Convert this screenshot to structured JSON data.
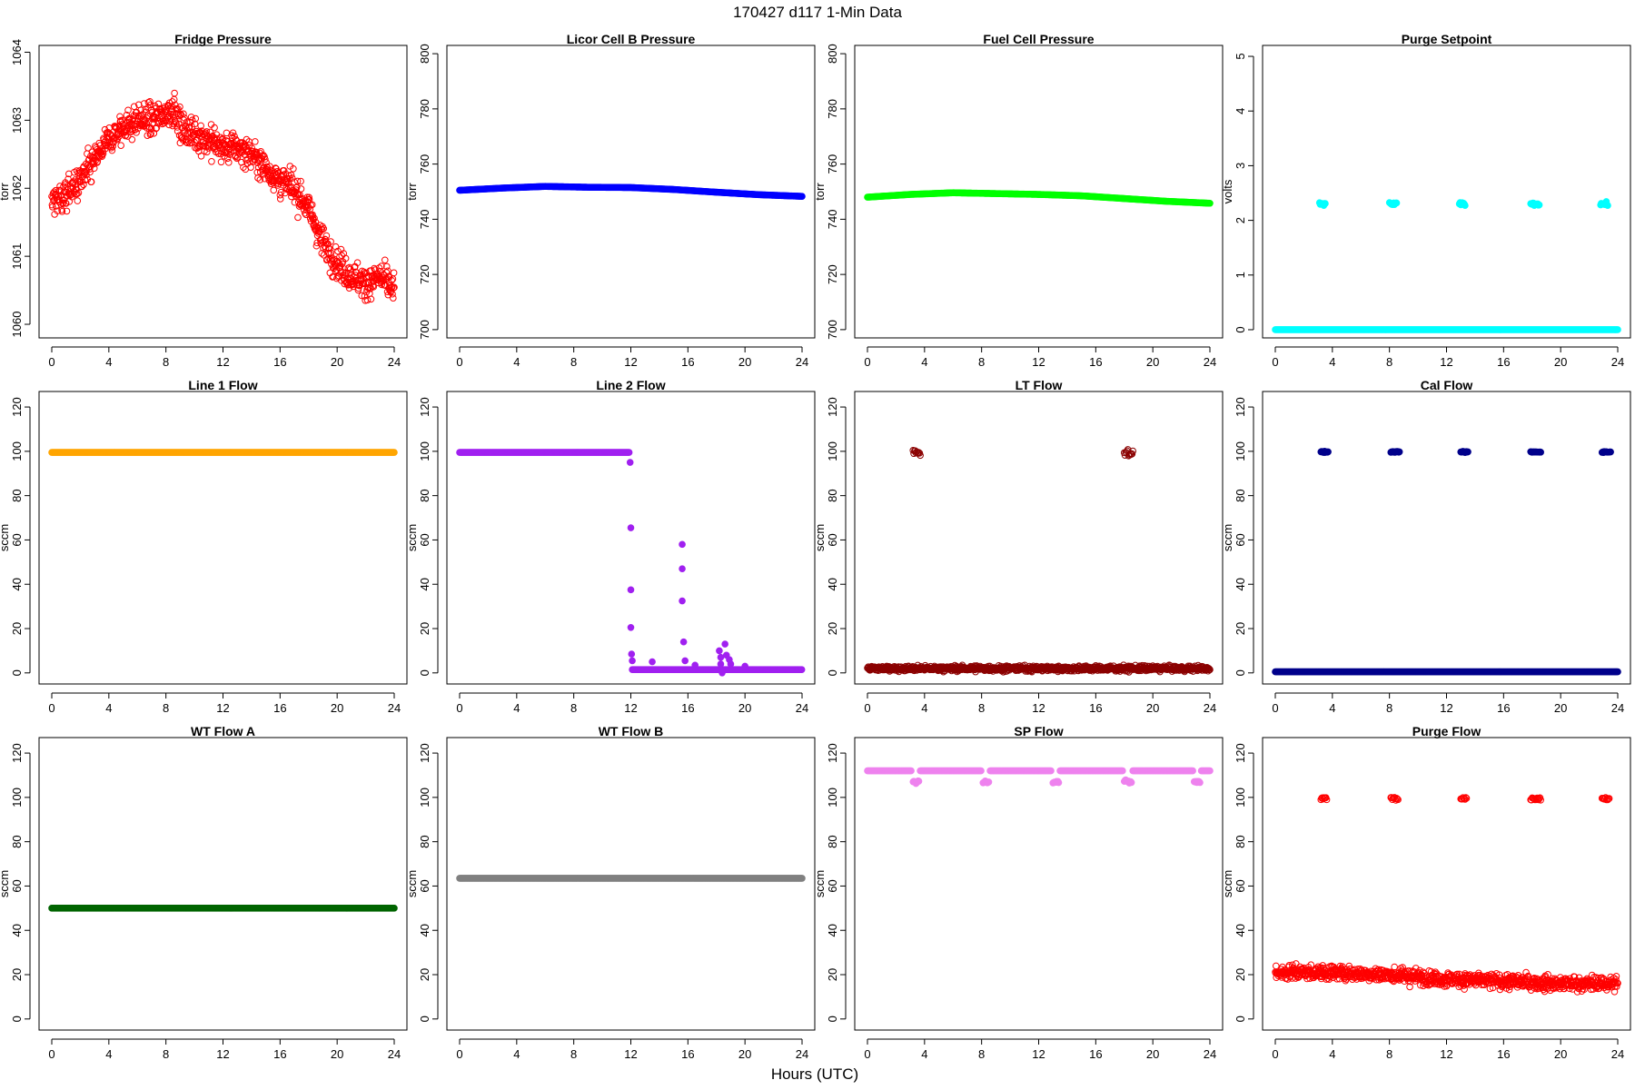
{
  "figure": {
    "main_title": "170427   d117   1-Min Data",
    "xlabel": "Hours (UTC)"
  },
  "chart_data": [
    {
      "type": "scatter",
      "title": "Fridge Pressure",
      "ylabel": "torr",
      "color": "#ff0000",
      "marker": "open-circle",
      "xlim": [
        0,
        24
      ],
      "ylim": [
        1059.8,
        1064.1
      ],
      "x_ticks": [
        0,
        4,
        8,
        12,
        16,
        20,
        24
      ],
      "y_ticks": [
        1060,
        1061,
        1062,
        1063,
        1064
      ],
      "series": [
        {
          "x": [
            0,
            1,
            2,
            3,
            4,
            5,
            6,
            7,
            8,
            8.5,
            9,
            10,
            11,
            12,
            13,
            14,
            15,
            16,
            17,
            18,
            19,
            20,
            21,
            22,
            23,
            24
          ],
          "y": [
            1061.8,
            1061.9,
            1062.1,
            1062.4,
            1062.7,
            1062.9,
            1063.0,
            1063.0,
            1063.1,
            1063.2,
            1062.9,
            1062.8,
            1062.7,
            1062.6,
            1062.6,
            1062.5,
            1062.3,
            1062.1,
            1062.0,
            1061.7,
            1061.2,
            1060.9,
            1060.7,
            1060.6,
            1060.7,
            1060.5
          ],
          "noise": 0.35
        }
      ]
    },
    {
      "type": "scatter",
      "title": "Licor Cell B Pressure",
      "ylabel": "torr",
      "color": "#0000ff",
      "marker": "filled",
      "xlim": [
        0,
        24
      ],
      "ylim": [
        697,
        803
      ],
      "x_ticks": [
        0,
        4,
        8,
        12,
        16,
        20,
        24
      ],
      "y_ticks": [
        700,
        720,
        740,
        760,
        780,
        800
      ],
      "series": [
        {
          "x": [
            0,
            3,
            6,
            9,
            12,
            15,
            18,
            21,
            24
          ],
          "y": [
            750.5,
            751.3,
            751.9,
            751.6,
            751.5,
            750.8,
            749.8,
            748.9,
            748.3
          ],
          "noise": 0
        }
      ]
    },
    {
      "type": "scatter",
      "title": "Fuel Cell Pressure",
      "ylabel": "torr",
      "color": "#00ff00",
      "marker": "filled",
      "xlim": [
        0,
        24
      ],
      "ylim": [
        697,
        803
      ],
      "x_ticks": [
        0,
        4,
        8,
        12,
        16,
        20,
        24
      ],
      "y_ticks": [
        700,
        720,
        740,
        760,
        780,
        800
      ],
      "series": [
        {
          "x": [
            0,
            3,
            6,
            9,
            12,
            15,
            18,
            21,
            24
          ],
          "y": [
            748.0,
            749.0,
            749.6,
            749.3,
            749.0,
            748.5,
            747.5,
            746.5,
            745.8
          ],
          "noise": 0
        }
      ]
    },
    {
      "type": "scatter",
      "title": "Purge Setpoint",
      "ylabel": "volts",
      "color": "#00ffff",
      "marker": "filled",
      "xlim": [
        0,
        24
      ],
      "ylim": [
        -0.15,
        5.2
      ],
      "x_ticks": [
        0,
        4,
        8,
        12,
        16,
        20,
        24
      ],
      "y_ticks": [
        0,
        1,
        2,
        3,
        4,
        5
      ],
      "series": [
        {
          "x": [
            0,
            24
          ],
          "y": [
            0,
            0
          ],
          "noise": 0
        }
      ],
      "clusters": [
        {
          "x": [
            3.1,
            3.5
          ],
          "y": 2.3,
          "spread": 0.04
        },
        {
          "x": [
            8.0,
            8.5
          ],
          "y": 2.3,
          "spread": 0.04
        },
        {
          "x": [
            12.9,
            13.3
          ],
          "y": 2.3,
          "spread": 0.04
        },
        {
          "x": [
            17.9,
            18.5
          ],
          "y": 2.3,
          "spread": 0.04
        },
        {
          "x": [
            22.8,
            23.3
          ],
          "y": 2.3,
          "spread": 0.04
        }
      ]
    },
    {
      "type": "scatter",
      "title": "Line 1 Flow",
      "ylabel": "sccm",
      "color": "#ffa500",
      "marker": "filled",
      "xlim": [
        0,
        24
      ],
      "ylim": [
        -5,
        127
      ],
      "x_ticks": [
        0,
        4,
        8,
        12,
        16,
        20,
        24
      ],
      "y_ticks": [
        0,
        20,
        40,
        60,
        80,
        100,
        120
      ],
      "series": [
        {
          "x": [
            0,
            24
          ],
          "y": [
            99.5,
            99.5
          ],
          "noise": 0
        }
      ]
    },
    {
      "type": "scatter",
      "title": "Line 2 Flow",
      "ylabel": "sccm",
      "color": "#a020f0",
      "marker": "filled",
      "xlim": [
        0,
        24
      ],
      "ylim": [
        -5,
        127
      ],
      "x_ticks": [
        0,
        4,
        8,
        12,
        16,
        20,
        24
      ],
      "y_ticks": [
        0,
        20,
        40,
        60,
        80,
        100,
        120
      ],
      "series": [
        {
          "x": [
            0,
            11.9
          ],
          "y": [
            99.5,
            99.5
          ],
          "noise": 0
        },
        {
          "x": [
            12.1,
            24
          ],
          "y": [
            1.5,
            1.5
          ],
          "noise": 0
        }
      ],
      "outliers": [
        {
          "x": 11.95,
          "y": 95
        },
        {
          "x": 12.0,
          "y": 65.5
        },
        {
          "x": 12.0,
          "y": 37.5
        },
        {
          "x": 12.0,
          "y": 20.5
        },
        {
          "x": 12.05,
          "y": 8.5
        },
        {
          "x": 12.1,
          "y": 5.5
        },
        {
          "x": 13.5,
          "y": 5
        },
        {
          "x": 15.6,
          "y": 58
        },
        {
          "x": 15.6,
          "y": 47
        },
        {
          "x": 15.6,
          "y": 32.5
        },
        {
          "x": 15.7,
          "y": 14
        },
        {
          "x": 15.8,
          "y": 5.5
        },
        {
          "x": 16.5,
          "y": 3.5
        },
        {
          "x": 18.2,
          "y": 10
        },
        {
          "x": 18.3,
          "y": 7
        },
        {
          "x": 18.3,
          "y": 4
        },
        {
          "x": 18.4,
          "y": 0
        },
        {
          "x": 18.6,
          "y": 13
        },
        {
          "x": 18.7,
          "y": 8
        },
        {
          "x": 18.9,
          "y": 6
        },
        {
          "x": 19.0,
          "y": 4
        },
        {
          "x": 20.0,
          "y": 3
        }
      ]
    },
    {
      "type": "scatter",
      "title": "LT Flow",
      "ylabel": "sccm",
      "color": "#8b0000",
      "marker": "open-circle",
      "xlim": [
        0,
        24
      ],
      "ylim": [
        -5,
        127
      ],
      "x_ticks": [
        0,
        4,
        8,
        12,
        16,
        20,
        24
      ],
      "y_ticks": [
        0,
        20,
        40,
        60,
        80,
        100,
        120
      ],
      "series": [
        {
          "x": [
            0,
            24
          ],
          "y": [
            2.0,
            2.0
          ],
          "noise": 1.8
        }
      ],
      "clusters": [
        {
          "x": [
            3.2,
            3.7
          ],
          "y": 99.5,
          "spread": 2.2
        },
        {
          "x": [
            18.0,
            18.6
          ],
          "y": 99.5,
          "spread": 2.2
        }
      ]
    },
    {
      "type": "scatter",
      "title": "Cal Flow",
      "ylabel": "sccm",
      "color": "#00008b",
      "marker": "filled",
      "xlim": [
        0,
        24
      ],
      "ylim": [
        -5,
        127
      ],
      "x_ticks": [
        0,
        4,
        8,
        12,
        16,
        20,
        24
      ],
      "y_ticks": [
        0,
        20,
        40,
        60,
        80,
        100,
        120
      ],
      "series": [
        {
          "x": [
            0,
            24
          ],
          "y": [
            0.5,
            0.5
          ],
          "noise": 0
        }
      ],
      "clusters": [
        {
          "x": [
            3.2,
            3.7
          ],
          "y": 99.7,
          "spread": 0.3
        },
        {
          "x": [
            8.1,
            8.7
          ],
          "y": 99.7,
          "spread": 0.3
        },
        {
          "x": [
            13.0,
            13.5
          ],
          "y": 99.7,
          "spread": 0.3
        },
        {
          "x": [
            17.9,
            18.6
          ],
          "y": 99.7,
          "spread": 0.3
        },
        {
          "x": [
            22.9,
            23.5
          ],
          "y": 99.7,
          "spread": 0.3
        }
      ]
    },
    {
      "type": "scatter",
      "title": "WT Flow A",
      "ylabel": "sccm",
      "color": "#006400",
      "marker": "filled",
      "xlim": [
        0,
        24
      ],
      "ylim": [
        -5,
        127
      ],
      "x_ticks": [
        0,
        4,
        8,
        12,
        16,
        20,
        24
      ],
      "y_ticks": [
        0,
        20,
        40,
        60,
        80,
        100,
        120
      ],
      "series": [
        {
          "x": [
            0,
            24
          ],
          "y": [
            50,
            50
          ],
          "noise": 0
        }
      ]
    },
    {
      "type": "scatter",
      "title": "WT Flow B",
      "ylabel": "sccm",
      "color": "#808080",
      "marker": "filled",
      "xlim": [
        0,
        24
      ],
      "ylim": [
        -5,
        127
      ],
      "x_ticks": [
        0,
        4,
        8,
        12,
        16,
        20,
        24
      ],
      "y_ticks": [
        0,
        20,
        40,
        60,
        80,
        100,
        120
      ],
      "series": [
        {
          "x": [
            0,
            24
          ],
          "y": [
            63.5,
            63.5
          ],
          "noise": 0
        }
      ]
    },
    {
      "type": "scatter",
      "title": "SP Flow",
      "ylabel": "sccm",
      "color": "#ee82ee",
      "marker": "filled",
      "xlim": [
        0,
        24
      ],
      "ylim": [
        -5,
        127
      ],
      "x_ticks": [
        0,
        4,
        8,
        12,
        16,
        20,
        24
      ],
      "y_ticks": [
        0,
        20,
        40,
        60,
        80,
        100,
        120
      ],
      "series": [
        {
          "x": [
            0,
            3.1
          ],
          "y": [
            112,
            112
          ],
          "noise": 0
        },
        {
          "x": [
            3.7,
            8.0
          ],
          "y": [
            112,
            112
          ],
          "noise": 0
        },
        {
          "x": [
            8.6,
            12.9
          ],
          "y": [
            112,
            112
          ],
          "noise": 0
        },
        {
          "x": [
            13.5,
            17.9
          ],
          "y": [
            112,
            112
          ],
          "noise": 0
        },
        {
          "x": [
            18.6,
            22.8
          ],
          "y": [
            112,
            112
          ],
          "noise": 0
        },
        {
          "x": [
            23.4,
            24
          ],
          "y": [
            112,
            112
          ],
          "noise": 0
        }
      ],
      "clusters": [
        {
          "x": [
            3.2,
            3.6
          ],
          "y": 107,
          "spread": 1.2
        },
        {
          "x": [
            8.1,
            8.5
          ],
          "y": 107,
          "spread": 0.6
        },
        {
          "x": [
            13.0,
            13.4
          ],
          "y": 107,
          "spread": 0.6
        },
        {
          "x": [
            18.0,
            18.5
          ],
          "y": 107,
          "spread": 1.2
        },
        {
          "x": [
            22.9,
            23.3
          ],
          "y": 107,
          "spread": 0.6
        }
      ]
    },
    {
      "type": "scatter",
      "title": "Purge Flow",
      "ylabel": "sccm",
      "color": "#ff0000",
      "marker": "open-circle",
      "xlim": [
        0,
        24
      ],
      "ylim": [
        -5,
        127
      ],
      "x_ticks": [
        0,
        4,
        8,
        12,
        16,
        20,
        24
      ],
      "y_ticks": [
        0,
        20,
        40,
        60,
        80,
        100,
        120
      ],
      "series": [
        {
          "x": [
            0,
            4,
            8,
            12,
            16,
            20,
            24
          ],
          "y": [
            21,
            21,
            20,
            18,
            17,
            16,
            16
          ],
          "noise": 5
        }
      ],
      "clusters": [
        {
          "x": [
            3.2,
            3.6
          ],
          "y": 99.5,
          "spread": 1.0
        },
        {
          "x": [
            8.1,
            8.6
          ],
          "y": 99.5,
          "spread": 1.0
        },
        {
          "x": [
            13.0,
            13.4
          ],
          "y": 99.5,
          "spread": 1.0
        },
        {
          "x": [
            17.9,
            18.6
          ],
          "y": 99.5,
          "spread": 1.0
        },
        {
          "x": [
            22.9,
            23.4
          ],
          "y": 99.5,
          "spread": 1.0
        }
      ]
    }
  ]
}
